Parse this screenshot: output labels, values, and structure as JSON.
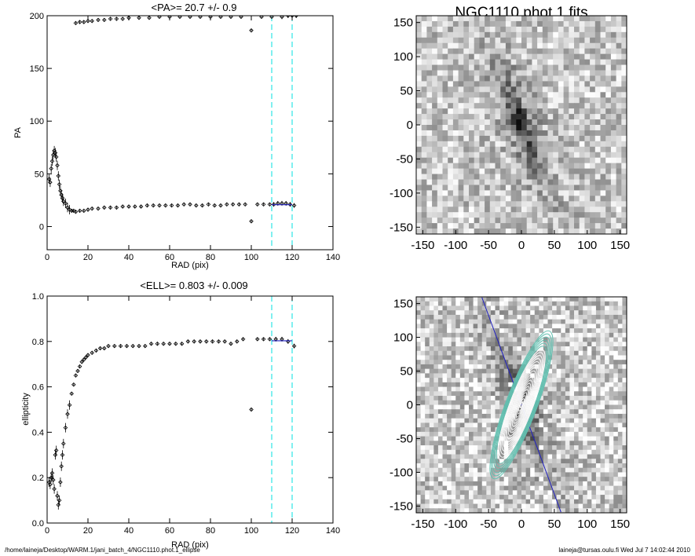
{
  "chart_data": [
    {
      "type": "scatter",
      "title": "<PA>=  20.7 +/-   0.9",
      "xlabel": "RAD (pix)",
      "ylabel": "PA",
      "xlim": [
        0,
        140
      ],
      "ylim": [
        -22,
        200
      ],
      "xticks": [
        "0",
        "20",
        "40",
        "60",
        "80",
        "100",
        "120",
        "140"
      ],
      "yticks": [
        "0",
        "50",
        "100",
        "150",
        "200"
      ],
      "vlines": [
        110,
        120
      ],
      "fit_range": [
        110,
        120
      ],
      "mean_value": 20.7,
      "series": [
        {
          "x": [
            1,
            1.5,
            2,
            2.5,
            3,
            3.5,
            4,
            4.5,
            5,
            5.5,
            6,
            6.5,
            7,
            7.5,
            8,
            9,
            10,
            11,
            12,
            13,
            14,
            16,
            18,
            20,
            22,
            25,
            28,
            31,
            34,
            37,
            40,
            43,
            46,
            49,
            52,
            55,
            58,
            61,
            64,
            67,
            70,
            73,
            76,
            79,
            82,
            85,
            88,
            91,
            94,
            97,
            100,
            103,
            106,
            109,
            111,
            113,
            115,
            117,
            119,
            121
          ],
          "y": [
            45,
            42,
            55,
            62,
            68,
            72,
            70,
            66,
            58,
            48,
            40,
            34,
            30,
            27,
            24,
            22,
            18,
            16,
            15,
            15,
            14,
            15,
            15,
            16,
            17,
            17,
            18,
            18,
            18,
            19,
            19,
            19,
            19,
            20,
            20,
            20,
            20,
            20,
            20,
            21,
            21,
            20,
            20,
            21,
            20,
            20,
            21,
            21,
            21,
            21,
            5,
            21,
            21,
            21,
            21,
            22,
            22,
            22,
            21,
            20
          ]
        },
        {
          "x": [
            14,
            16,
            18,
            20,
            22,
            25,
            28,
            31,
            34,
            37,
            40,
            45,
            50,
            55,
            60,
            65,
            70,
            75,
            80,
            85,
            90,
            95,
            100,
            105,
            110,
            115,
            118,
            120,
            122
          ],
          "y": [
            193,
            194,
            194,
            195,
            195,
            196,
            196,
            197,
            197,
            197,
            198,
            198,
            198,
            199,
            199,
            199,
            199,
            199,
            199,
            199,
            199,
            199,
            186,
            199,
            199,
            199,
            200,
            200,
            200
          ]
        }
      ]
    },
    {
      "type": "scatter",
      "title": "<ELL>= 0.803 +/-  0.009",
      "xlabel": "RAD (pix)",
      "ylabel": "ellipticity",
      "xlim": [
        0,
        140
      ],
      "ylim": [
        0,
        1
      ],
      "xticks": [
        "0",
        "20",
        "40",
        "60",
        "80",
        "100",
        "120",
        "140"
      ],
      "yticks": [
        "0.0",
        "0.2",
        "0.4",
        "0.6",
        "0.8",
        "1.0"
      ],
      "vlines": [
        110,
        120
      ],
      "fit_range": [
        110,
        120
      ],
      "mean_value": 0.803,
      "series": [
        {
          "x": [
            1,
            1.5,
            2,
            2.5,
            3,
            3.5,
            4,
            4.5,
            5,
            5.5,
            6,
            6.5,
            7,
            7.5,
            8,
            9,
            10,
            11,
            12,
            13,
            14,
            15,
            16,
            17,
            18,
            19,
            20,
            22,
            24,
            26,
            28,
            30,
            33,
            36,
            39,
            42,
            45,
            48,
            51,
            54,
            57,
            60,
            63,
            66,
            69,
            72,
            75,
            78,
            81,
            84,
            87,
            90,
            93,
            96,
            100,
            103,
            106,
            109,
            112,
            115,
            118,
            121
          ],
          "y": [
            0.18,
            0.17,
            0.2,
            0.22,
            0.19,
            0.15,
            0.3,
            0.32,
            0.12,
            0.08,
            0.1,
            0.18,
            0.25,
            0.3,
            0.35,
            0.42,
            0.48,
            0.52,
            0.57,
            0.61,
            0.65,
            0.67,
            0.69,
            0.71,
            0.72,
            0.73,
            0.74,
            0.75,
            0.76,
            0.77,
            0.77,
            0.78,
            0.78,
            0.78,
            0.78,
            0.78,
            0.78,
            0.78,
            0.79,
            0.79,
            0.79,
            0.79,
            0.79,
            0.79,
            0.8,
            0.8,
            0.8,
            0.8,
            0.8,
            0.8,
            0.8,
            0.79,
            0.8,
            0.81,
            0.5,
            0.81,
            0.81,
            0.81,
            0.81,
            0.81,
            0.8,
            0.78
          ]
        }
      ]
    },
    {
      "type": "heatmap",
      "title": "NGC1110.phot.1.fits",
      "xlim": [
        -160,
        160
      ],
      "ylim": [
        -160,
        160
      ],
      "xticks": [
        "-150",
        "-100",
        "-50",
        "0",
        "50",
        "100",
        "150"
      ],
      "yticks": [
        "-150",
        "-100",
        "-50",
        "0",
        "50",
        "100",
        "150"
      ],
      "colormap": "inverse grayscale",
      "position_angle": 20.7
    },
    {
      "type": "heatmap",
      "title": "",
      "xlim": [
        -160,
        160
      ],
      "ylim": [
        -160,
        160
      ],
      "xticks": [
        "-150",
        "-100",
        "-50",
        "0",
        "50",
        "100",
        "150"
      ],
      "yticks": [
        "-150",
        "-100",
        "-50",
        "0",
        "50",
        "100",
        "150"
      ],
      "colormap": "inverse grayscale",
      "overlay": "fitted isophote ellipses with major-axis line",
      "position_angle": 20.7,
      "ellipticity": 0.803
    }
  ],
  "footer": {
    "left": "/home/laineja/Desktop/WARM.1/jani_batch_4/NGC1110.phot.1_ellipse",
    "right": "laineja@tursas.oulu.fi  Wed Jul  7 14:02:44 2010"
  },
  "colors": {
    "vline": "#00e0e0",
    "fit_line": "#2020c0",
    "ellipse_outer": "#60c0b0",
    "ellipse_inner": "#ffffff",
    "axis": "#000000"
  }
}
